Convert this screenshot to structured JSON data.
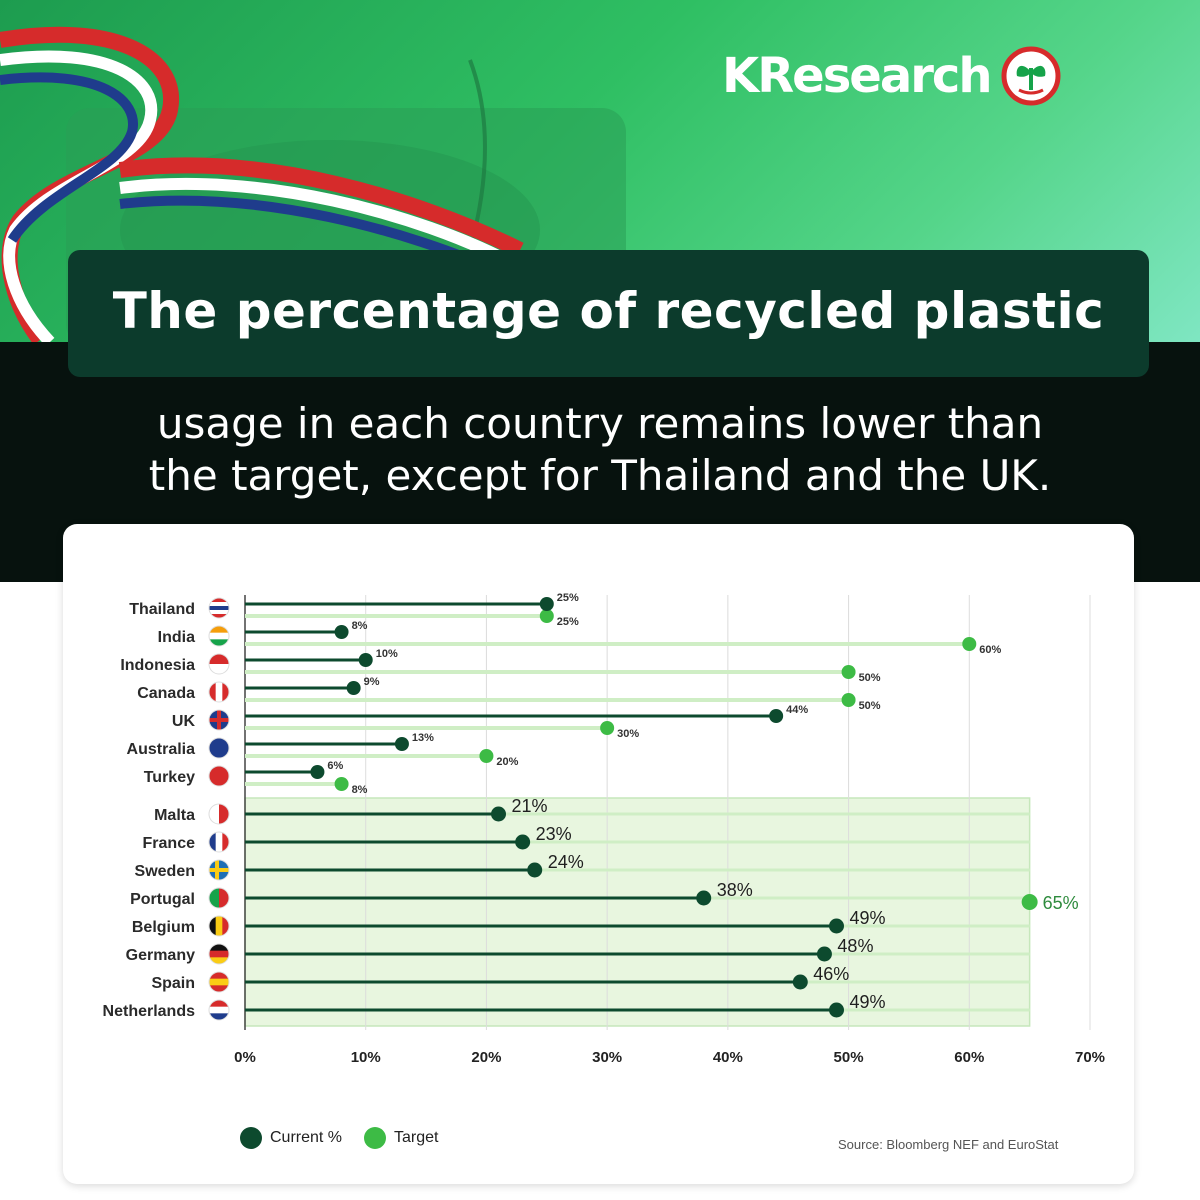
{
  "brand": {
    "name": "KResearch"
  },
  "header": {
    "title": "The percentage of recycled plastic",
    "subtitle_line1": "usage in each country remains lower than",
    "subtitle_line2": "the target, except for Thailand and the UK."
  },
  "legend": {
    "current": "Current %",
    "target": "Target"
  },
  "source": "Source: Bloomberg NEF and EuroStat",
  "colors": {
    "current": "#0d4a2e",
    "target": "#3dbb45",
    "target_line": "#cfeec5",
    "eu_band": "#e8f6df",
    "eu_label": "#2e8b3d",
    "flag_red": "#d62b2b",
    "flag_blue": "#1f3c8c"
  },
  "chart_data": {
    "type": "dot-plot",
    "title": "",
    "x_ticks": [
      "0%",
      "10%",
      "20%",
      "30%",
      "40%",
      "50%",
      "60%",
      "70%"
    ],
    "xlim": [
      0,
      70
    ],
    "grid": true,
    "legend_position": "bottom-left",
    "series": [
      {
        "name": "Current %",
        "values": [
          25,
          8,
          10,
          9,
          44,
          13,
          6,
          21,
          23,
          24,
          38,
          49,
          48,
          46,
          49
        ]
      },
      {
        "name": "Target",
        "values": [
          25,
          60,
          50,
          50,
          30,
          20,
          8,
          65,
          65,
          65,
          65,
          65,
          65,
          65,
          65
        ]
      }
    ],
    "countries": [
      {
        "name": "Thailand",
        "current": 25,
        "current_label": "25%",
        "target": 25,
        "target_label": "25%",
        "group": "non-eu"
      },
      {
        "name": "India",
        "current": 8,
        "current_label": "8%",
        "target": 60,
        "target_label": "60%",
        "group": "non-eu"
      },
      {
        "name": "Indonesia",
        "current": 10,
        "current_label": "10%",
        "target": 50,
        "target_label": "50%",
        "group": "non-eu"
      },
      {
        "name": "Canada",
        "current": 9,
        "current_label": "9%",
        "target": 50,
        "target_label": "50%",
        "group": "non-eu"
      },
      {
        "name": "UK",
        "current": 44,
        "current_label": "44%",
        "target": 30,
        "target_label": "30%",
        "group": "non-eu"
      },
      {
        "name": "Australia",
        "current": 13,
        "current_label": "13%",
        "target": 20,
        "target_label": "20%",
        "group": "non-eu"
      },
      {
        "name": "Turkey",
        "current": 6,
        "current_label": "6%",
        "target": 8,
        "target_label": "8%",
        "group": "non-eu"
      },
      {
        "name": "Malta",
        "current": 21,
        "current_label": "21%",
        "group": "eu"
      },
      {
        "name": "France",
        "current": 23,
        "current_label": "23%",
        "group": "eu"
      },
      {
        "name": "Sweden",
        "current": 24,
        "current_label": "24%",
        "group": "eu"
      },
      {
        "name": "Portugal",
        "current": 38,
        "current_label": "38%",
        "group": "eu"
      },
      {
        "name": "Belgium",
        "current": 49,
        "current_label": "49%",
        "group": "eu"
      },
      {
        "name": "Germany",
        "current": 48,
        "current_label": "48%",
        "group": "eu"
      },
      {
        "name": "Spain",
        "current": 46,
        "current_label": "46%",
        "group": "eu"
      },
      {
        "name": "Netherlands",
        "current": 49,
        "current_label": "49%",
        "group": "eu"
      }
    ],
    "eu_target": 65,
    "eu_target_label": "65%"
  }
}
